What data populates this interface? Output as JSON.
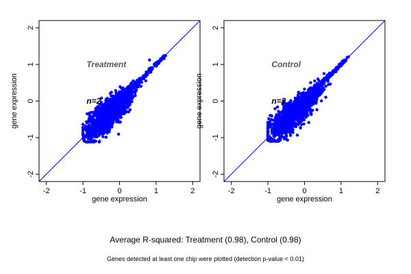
{
  "chart_data": [
    {
      "type": "scatter",
      "title": "Treatment",
      "annotation": "n=2",
      "xlabel": "gene expression",
      "ylabel": "gene expression",
      "xlim": [
        -2.2,
        2.2
      ],
      "ylim": [
        -2.2,
        2.2
      ],
      "xticks": [
        -2,
        -1,
        0,
        1,
        2
      ],
      "yticks": [
        -2,
        -1,
        0,
        1,
        2
      ],
      "reference_line": "y = x",
      "point_color": "#0000ff",
      "line_color": "#0000ff",
      "cloud": {
        "x_range": [
          -1.0,
          1.25
        ],
        "y_range": [
          -1.12,
          1.25
        ],
        "center": [
          -0.25,
          -0.3
        ],
        "shape": "elongated ellipse along y = x"
      }
    },
    {
      "type": "scatter",
      "title": "Control",
      "annotation": "n=2",
      "xlabel": "gene expression",
      "ylabel": "gene expression",
      "xlim": [
        -2.2,
        2.2
      ],
      "ylim": [
        -2.2,
        2.2
      ],
      "xticks": [
        -2,
        -1,
        0,
        1,
        2
      ],
      "yticks": [
        -2,
        -1,
        0,
        1,
        2
      ],
      "reference_line": "y = x",
      "point_color": "#0000ff",
      "line_color": "#0000ff",
      "cloud": {
        "x_range": [
          -1.0,
          1.2
        ],
        "y_range": [
          -1.1,
          1.2
        ],
        "center": [
          -0.25,
          -0.3
        ],
        "shape": "elongated ellipse along y = x"
      }
    }
  ],
  "subtitle": "Average R-squared: Treatment (0.98), Control (0.98)",
  "footnote": "Genes detected at least one chip were plotted (detection p-value < 0.01)"
}
